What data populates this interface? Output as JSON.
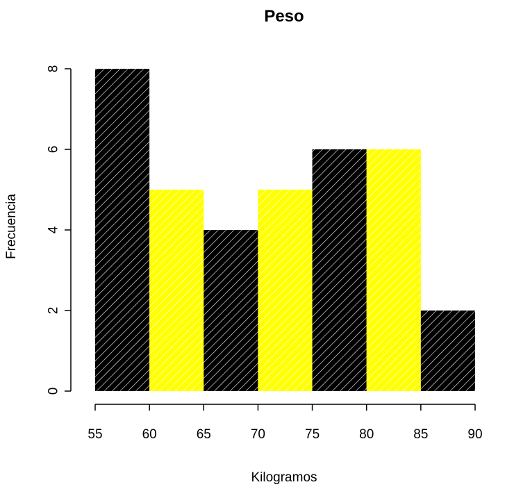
{
  "chart_data": {
    "type": "bar",
    "title": "Peso",
    "xlabel": "Kilogramos",
    "ylabel": "Frecuencia",
    "bins": [
      {
        "from": 55,
        "to": 60,
        "value": 8,
        "color": "#000000"
      },
      {
        "from": 60,
        "to": 65,
        "value": 5,
        "color": "#ffff00"
      },
      {
        "from": 65,
        "to": 70,
        "value": 4,
        "color": "#000000"
      },
      {
        "from": 70,
        "to": 75,
        "value": 5,
        "color": "#ffff00"
      },
      {
        "from": 75,
        "to": 80,
        "value": 6,
        "color": "#000000"
      },
      {
        "from": 80,
        "to": 85,
        "value": 6,
        "color": "#ffff00"
      },
      {
        "from": 85,
        "to": 90,
        "value": 2,
        "color": "#000000"
      }
    ],
    "xlim": [
      55,
      90
    ],
    "ylim": [
      0,
      8
    ],
    "x_ticks": [
      "55",
      "60",
      "65",
      "70",
      "75",
      "80",
      "85",
      "90"
    ],
    "y_ticks": [
      "0",
      "2",
      "4",
      "6",
      "8"
    ],
    "hatch": "diagonal lines",
    "grid": false,
    "legend": "none"
  }
}
